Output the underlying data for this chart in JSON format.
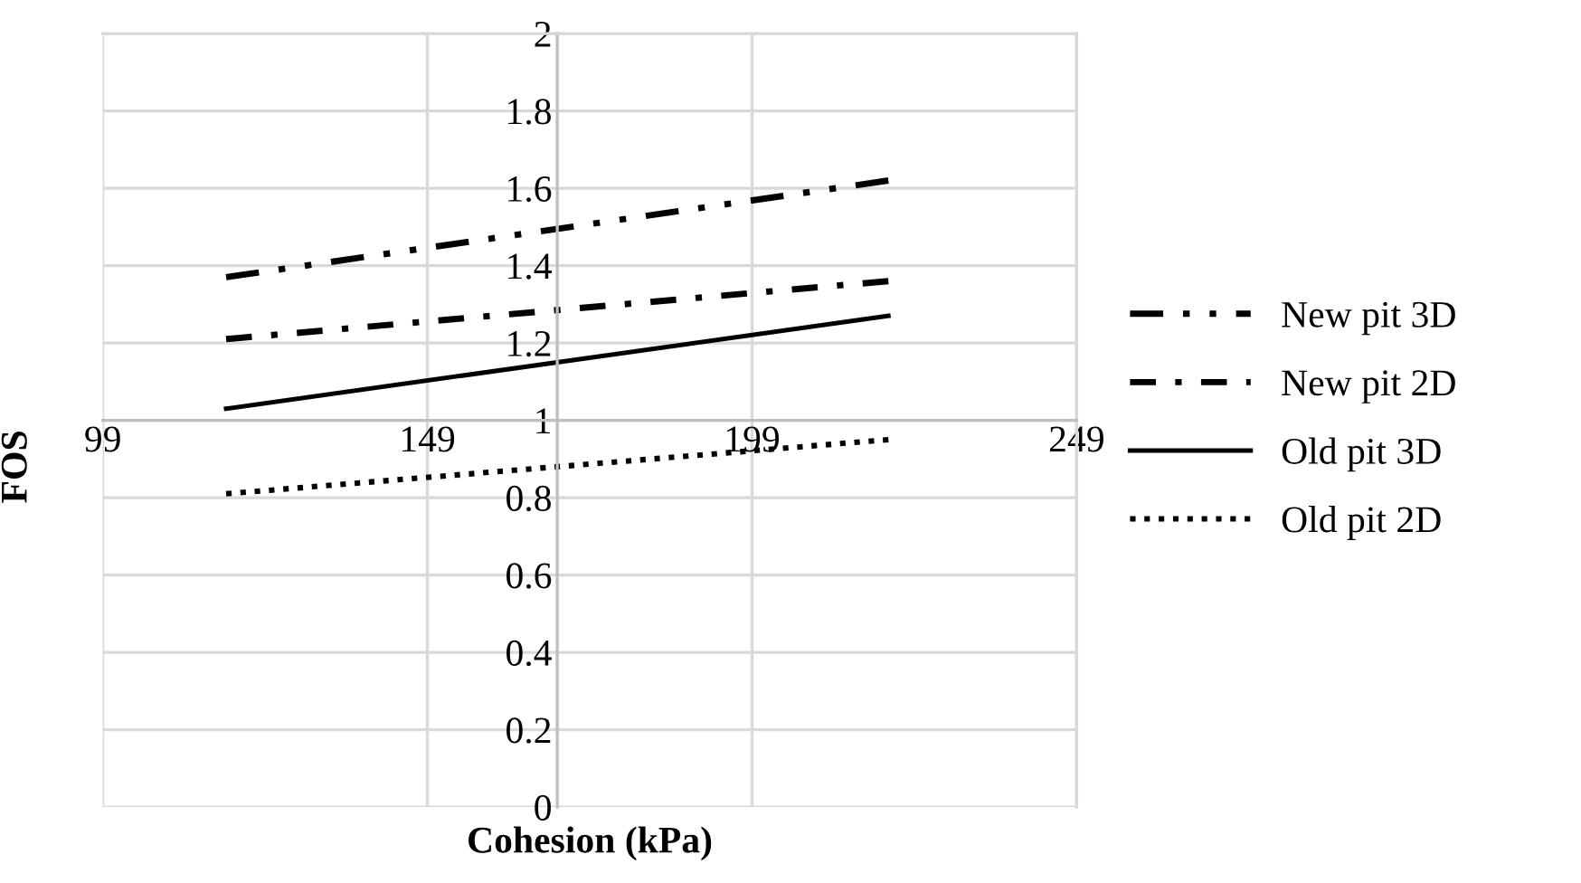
{
  "chart_data": {
    "type": "line",
    "xlabel": "Cohesion (kPa)",
    "ylabel": "FOS",
    "xlim": [
      99,
      249
    ],
    "xticks": [
      99,
      149,
      199,
      249
    ],
    "ylim": [
      0,
      2
    ],
    "yticks": [
      0,
      0.2,
      0.4,
      0.6,
      0.8,
      1,
      1.2,
      1.4,
      1.6,
      1.8,
      2
    ],
    "x": [
      118,
      220
    ],
    "grid": true,
    "legend": "right",
    "marker": "none",
    "series": [
      {
        "name": "New pit 3D",
        "color": "#000000",
        "line_style": "dash-dot-dot",
        "values": [
          1.37,
          1.62
        ]
      },
      {
        "name": "New pit 2D",
        "color": "#000000",
        "line_style": "dash-dot",
        "values": [
          1.21,
          1.36
        ]
      },
      {
        "name": "Old pit 3D",
        "color": "#000000",
        "line_style": "solid",
        "values": [
          1.03,
          1.27
        ]
      },
      {
        "name": "Old pit 2D",
        "color": "#000000",
        "line_style": "dotted",
        "values": [
          0.81,
          0.95
        ]
      }
    ]
  }
}
